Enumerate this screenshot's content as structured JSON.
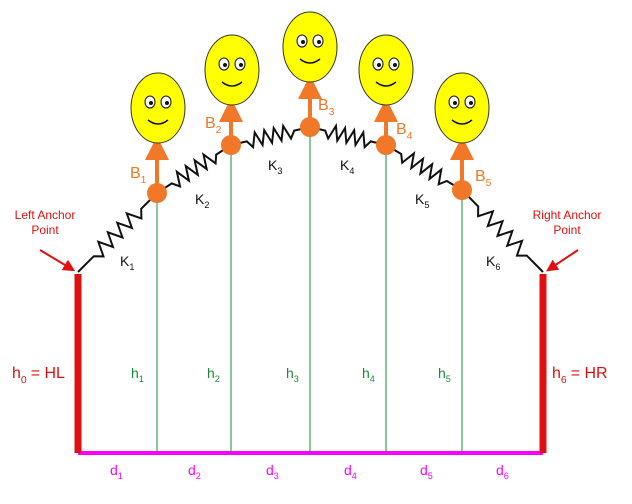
{
  "anchors": {
    "left": "Left Anchor Point",
    "right": "Right Anchor Point"
  },
  "balloons": [
    {
      "symbol": "B",
      "index": "1"
    },
    {
      "symbol": "B",
      "index": "2"
    },
    {
      "symbol": "B",
      "index": "3"
    },
    {
      "symbol": "B",
      "index": "4"
    },
    {
      "symbol": "B",
      "index": "5"
    }
  ],
  "springs": [
    {
      "symbol": "K",
      "index": "1"
    },
    {
      "symbol": "K",
      "index": "2"
    },
    {
      "symbol": "K",
      "index": "3"
    },
    {
      "symbol": "K",
      "index": "4"
    },
    {
      "symbol": "K",
      "index": "5"
    },
    {
      "symbol": "K",
      "index": "6"
    }
  ],
  "heights": [
    {
      "symbol": "h",
      "index": "0",
      "suffix": "= HL"
    },
    {
      "symbol": "h",
      "index": "1"
    },
    {
      "symbol": "h",
      "index": "2"
    },
    {
      "symbol": "h",
      "index": "3"
    },
    {
      "symbol": "h",
      "index": "4"
    },
    {
      "symbol": "h",
      "index": "5"
    },
    {
      "symbol": "h",
      "index": "6",
      "suffix": "= HR"
    }
  ],
  "distances": [
    {
      "symbol": "d",
      "index": "1"
    },
    {
      "symbol": "d",
      "index": "2"
    },
    {
      "symbol": "d",
      "index": "3"
    },
    {
      "symbol": "d",
      "index": "4"
    },
    {
      "symbol": "d",
      "index": "5"
    },
    {
      "symbol": "d",
      "index": "6"
    }
  ]
}
